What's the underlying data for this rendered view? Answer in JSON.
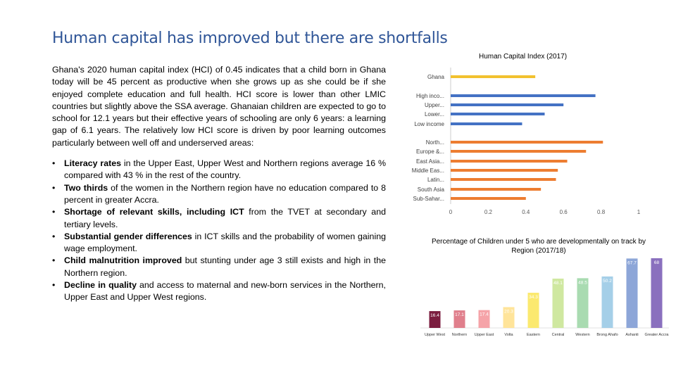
{
  "slide": {
    "title": "Human capital has improved but there are shortfalls",
    "intro": "Ghana's 2020 human capital index (HCI) of 0.45 indicates that a child born in Ghana today will be 45 percent as productive when she grows up as she could be if she enjoyed complete education and full health. HCI score is lower than other LMIC countries but slightly above the SSA average. Ghanaian children are expected to go to school for 12.1 years but their effective years of schooling are only 6 years: a learning gap of 6.1 years. The relatively low HCI score is driven by poor learning outcomes particularly between well off and underserved areas:",
    "bullet_glyph": "•",
    "bullets": [
      {
        "bold": "Literacy rates",
        "text": " in the Upper East, Upper West and Northern regions average 16 % compared with 43 % in the rest of the country."
      },
      {
        "bold": "Two thirds",
        "text": " of the women in the Northern region have no education compared to 8 percent in greater Accra."
      },
      {
        "bold": "Shortage of relevant skills, including ICT",
        "text": " from the TVET at secondary and tertiary levels."
      },
      {
        "bold": "Substantial gender differences",
        "text": " in ICT skills and the probability of women gaining wage employment."
      },
      {
        "bold": "Child malnutrition improved",
        "text": " but stunting under age 3 still exists and high in the Northern region."
      },
      {
        "bold": "Decline in quality",
        "text": " and access to maternal and new-born services in the Northern, Upper East and Upper West regions."
      }
    ]
  },
  "chart_data": [
    {
      "type": "bar",
      "orientation": "horizontal",
      "title": "Human Capital Index (2017)",
      "categories": [
        "Ghana",
        "High inco...",
        "Upper...",
        "Lower...",
        "Low income",
        "North...",
        "Europe &...",
        "East Asia...",
        "Middle Eas...",
        "Latin...",
        "South Asia",
        "Sub-Sahar..."
      ],
      "values": [
        0.45,
        0.77,
        0.6,
        0.5,
        0.38,
        0.81,
        0.72,
        0.62,
        0.57,
        0.56,
        0.48,
        0.4
      ],
      "colors": [
        "#f2c12e",
        "#4472c4",
        "#4472c4",
        "#4472c4",
        "#4472c4",
        "#ed7d31",
        "#ed7d31",
        "#ed7d31",
        "#ed7d31",
        "#ed7d31",
        "#ed7d31",
        "#ed7d31"
      ],
      "xlim": [
        0,
        1
      ],
      "xticks": [
        "0",
        "0.2",
        "0.4",
        "0.6",
        "0.8",
        "1"
      ],
      "grid": false
    },
    {
      "type": "bar",
      "title": "Percentage of Children under 5 who are developmentally on track by Region (2017/18)",
      "categories": [
        "Upper West",
        "Northern",
        "Upper East",
        "Volta",
        "Eastern",
        "Central",
        "Western",
        "Brong Ahafo",
        "Ashanti",
        "Greater Accra"
      ],
      "values": [
        16.4,
        17.1,
        17.4,
        20.3,
        34.3,
        48.1,
        48.5,
        50.2,
        67.7,
        68
      ],
      "labels": [
        "16.4",
        "17.1",
        "17.4",
        "20.3",
        "34.3",
        "48.1",
        "48.5",
        "50.2",
        "67.7",
        "68"
      ],
      "colors": [
        "#7b1d3f",
        "#e07f8c",
        "#f5a3a8",
        "#ffe49a",
        "#fbe96f",
        "#cfe8a0",
        "#a9dbb1",
        "#a5cfe8",
        "#8da6d8",
        "#8a70be"
      ],
      "ylim": [
        0,
        70
      ]
    }
  ]
}
